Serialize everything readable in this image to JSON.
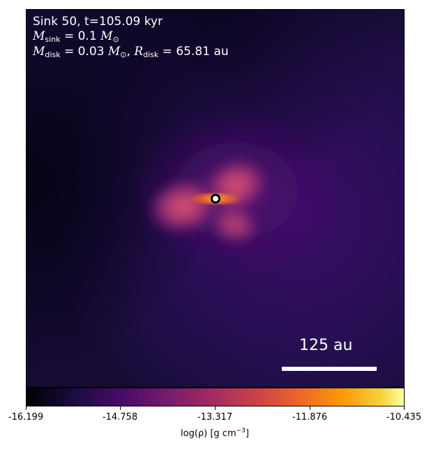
{
  "plot": {
    "title": "Sink 50, t=105.09 kyr",
    "sink_mass_label": "M",
    "sink_mass_sub": "sink",
    "sink_mass_value": " = 0.1 ",
    "sink_mass_unit": "M",
    "sink_mass_unit_sub": "⊙",
    "disk_mass_label": "M",
    "disk_mass_sub": "disk",
    "disk_mass_value": " = 0.03 ",
    "disk_mass_unit": "M",
    "disk_mass_unit_sub": "⊙",
    "disk_mass_sep": ", ",
    "disk_radius_label": "R",
    "disk_radius_sub": "disk",
    "disk_radius_value": " = 65.81 au",
    "scale_bar_label": "125 au",
    "colormap": "inferno",
    "sink_marker_fill": "#ffffff",
    "sink_marker_stroke": "#000000"
  },
  "colorbar": {
    "ticks": [
      "-16.199",
      "-14.758",
      "-13.317",
      "-11.876",
      "-10.435"
    ],
    "label_main": "log(ρ) [g cm",
    "label_exp": "−3",
    "label_end": "]"
  }
}
